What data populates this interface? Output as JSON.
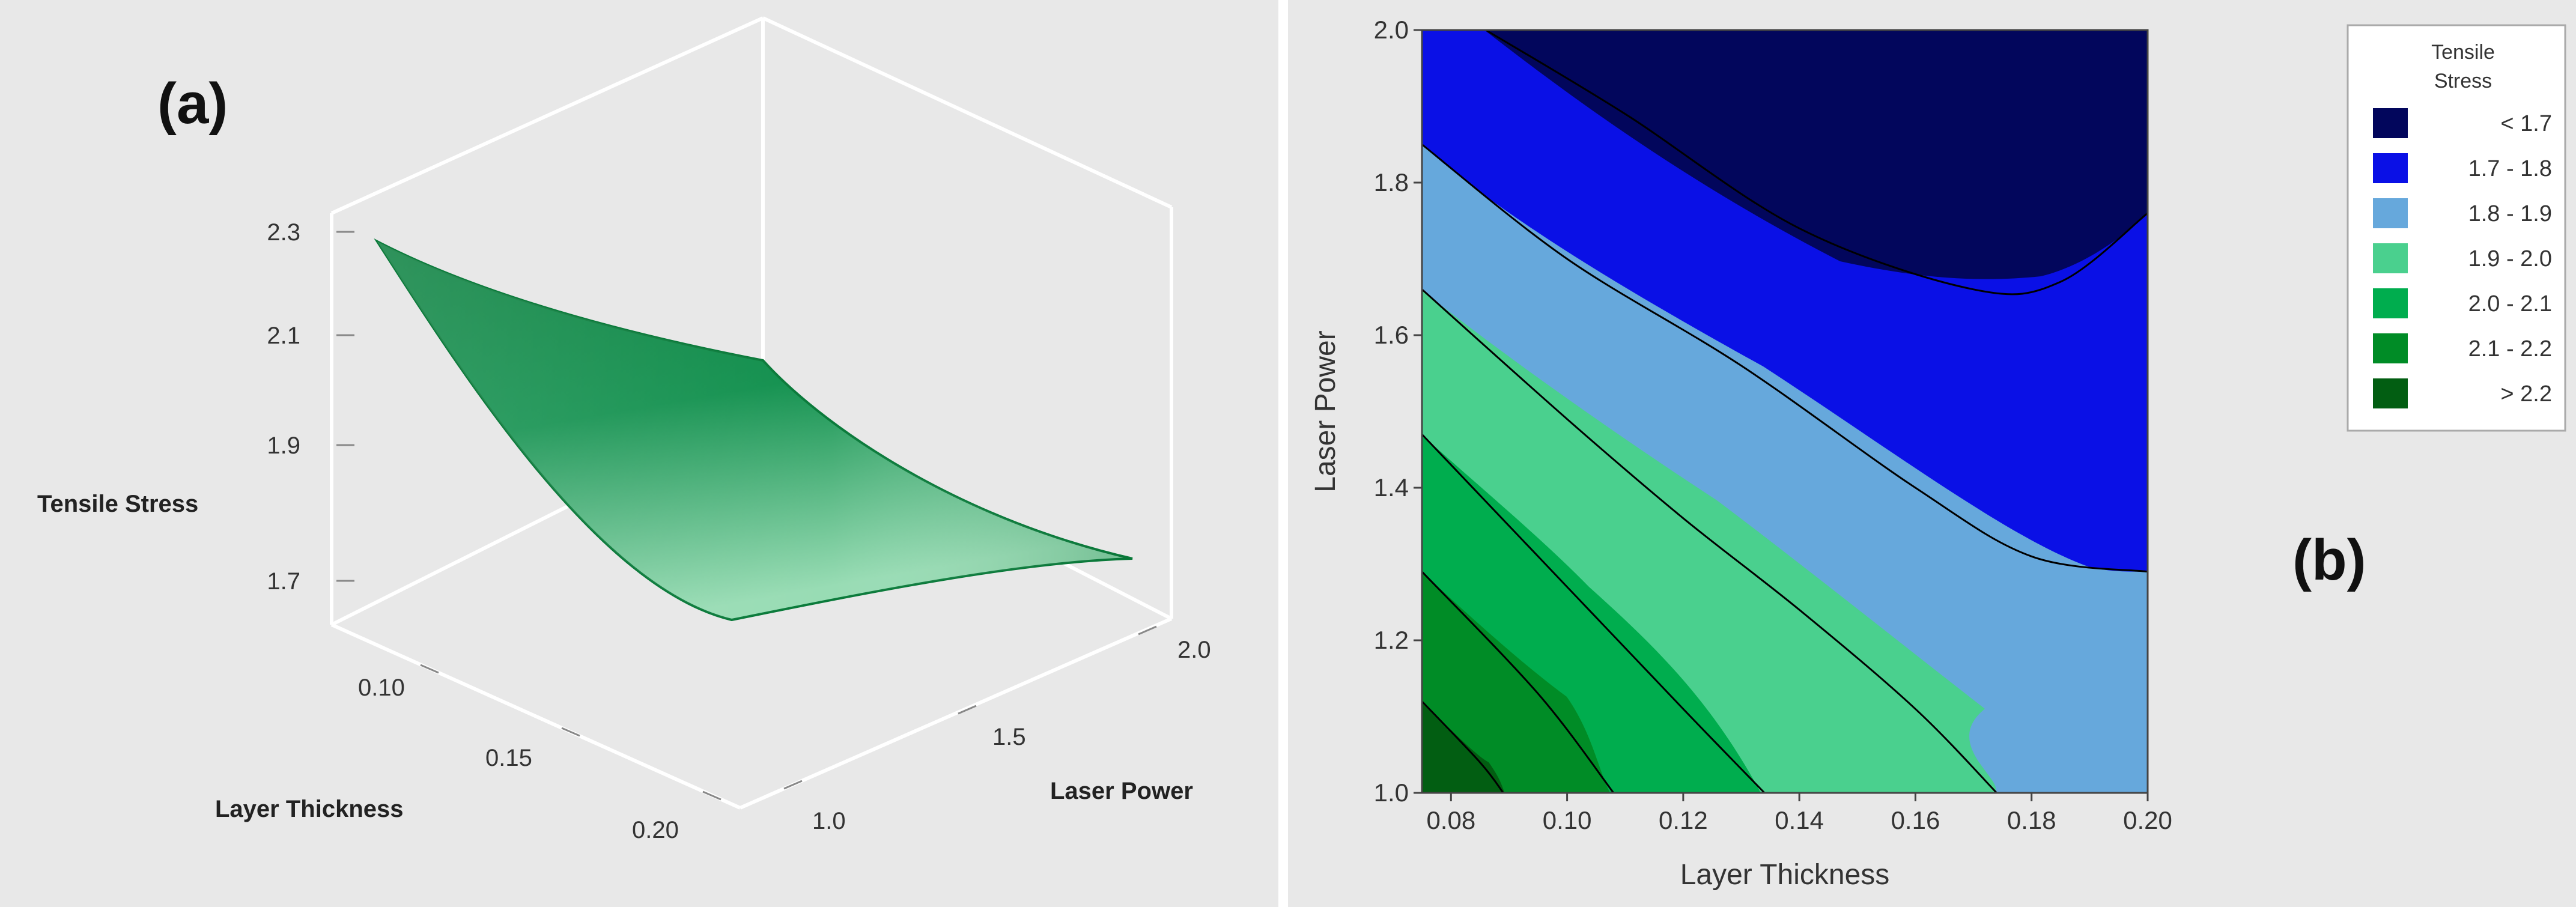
{
  "chart_data": [
    {
      "type": "surface",
      "panel_label": "(a)",
      "zlabel": "Tensile Stress",
      "xlabel": "Layer Thickness",
      "ylabel": "Laser Power",
      "z_ticks": [
        "2.3",
        "2.1",
        "1.9",
        "1.7"
      ],
      "x_ticks": [
        "0.10",
        "0.15",
        "0.20"
      ],
      "y_ticks": [
        "1.0",
        "1.5",
        "2.0"
      ],
      "xlim": [
        0.075,
        0.2
      ],
      "ylim": [
        1.0,
        2.0
      ],
      "zlim": [
        1.6,
        2.3
      ],
      "surface_color": "#0e8a4a",
      "corners": [
        {
          "layer_thickness": 0.075,
          "laser_power": 1.0,
          "tensile_stress": 2.27
        },
        {
          "layer_thickness": 0.075,
          "laser_power": 2.0,
          "tensile_stress": 1.77
        },
        {
          "layer_thickness": 0.2,
          "laser_power": 1.0,
          "tensile_stress": 1.75
        },
        {
          "layer_thickness": 0.2,
          "laser_power": 2.0,
          "tensile_stress": 1.71
        }
      ]
    },
    {
      "type": "contour",
      "panel_label": "(b)",
      "xlabel": "Layer Thickness",
      "ylabel": "Laser Power",
      "x_ticks": [
        "0.08",
        "0.10",
        "0.12",
        "0.14",
        "0.16",
        "0.18",
        "0.20"
      ],
      "y_ticks": [
        "1.0",
        "1.2",
        "1.4",
        "1.6",
        "1.8",
        "2.0"
      ],
      "xlim": [
        0.075,
        0.2
      ],
      "ylim": [
        1.0,
        2.0
      ],
      "legend_title": [
        "Tensile",
        "Stress"
      ],
      "legend_position": "right",
      "levels": [
        {
          "label": "<  1.7",
          "color": "#02065c"
        },
        {
          "label": "1.7 -  1.8",
          "color": "#0a10e6"
        },
        {
          "label": "1.8 -  1.9",
          "color": "#66a8dc"
        },
        {
          "label": "1.9 -  2.0",
          "color": "#4ad08e"
        },
        {
          "label": "2.0 -  2.1",
          "color": "#00ad4e"
        },
        {
          "label": "2.1 -  2.2",
          "color": "#008c26"
        },
        {
          "label": ">  2.2",
          "color": "#025e12"
        }
      ],
      "contour_lines": [
        {
          "value": 1.7,
          "points": [
            [
              0.086,
              2.0
            ],
            [
              0.11,
              1.89
            ],
            [
              0.14,
              1.74
            ],
            [
              0.17,
              1.66
            ],
            [
              0.185,
              1.67
            ],
            [
              0.2,
              1.76
            ]
          ]
        },
        {
          "value": 1.8,
          "points": [
            [
              0.075,
              1.85
            ],
            [
              0.1,
              1.7
            ],
            [
              0.13,
              1.56
            ],
            [
              0.16,
              1.4
            ],
            [
              0.18,
              1.31
            ],
            [
              0.2,
              1.29
            ]
          ]
        },
        {
          "value": 1.9,
          "points": [
            [
              0.075,
              1.66
            ],
            [
              0.1,
              1.49
            ],
            [
              0.12,
              1.36
            ],
            [
              0.14,
              1.24
            ],
            [
              0.16,
              1.11
            ],
            [
              0.174,
              1.0
            ]
          ]
        },
        {
          "value": 2.0,
          "points": [
            [
              0.075,
              1.47
            ],
            [
              0.1,
              1.27
            ],
            [
              0.12,
              1.11
            ],
            [
              0.134,
              1.0
            ]
          ]
        },
        {
          "value": 2.1,
          "points": [
            [
              0.075,
              1.29
            ],
            [
              0.095,
              1.13
            ],
            [
              0.108,
              1.0
            ]
          ]
        },
        {
          "value": 2.2,
          "points": [
            [
              0.075,
              1.12
            ],
            [
              0.085,
              1.04
            ],
            [
              0.089,
              1.0
            ]
          ]
        }
      ]
    }
  ]
}
